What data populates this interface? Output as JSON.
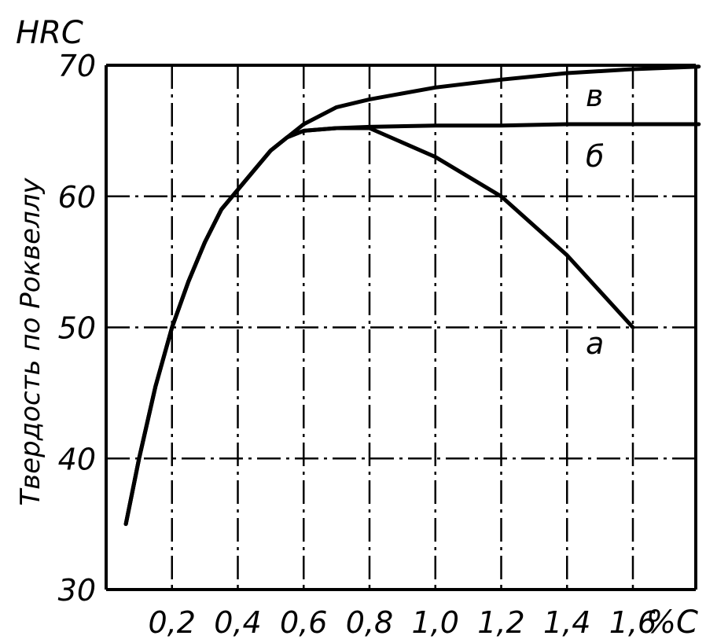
{
  "chart_data": {
    "type": "line",
    "ylabel": "Твердость по Роквеллу",
    "ylabel_units": "HRC",
    "xlabel_units": "%C",
    "xlim": [
      0,
      1.8
    ],
    "ylim": [
      30,
      70
    ],
    "x_ticks": [
      "0,2",
      "0,4",
      "0,6",
      "0,8",
      "1,0",
      "1,2",
      "1,4",
      "1,6"
    ],
    "x_tick_values": [
      0.2,
      0.4,
      0.6,
      0.8,
      1.0,
      1.2,
      1.4,
      1.6
    ],
    "y_ticks": [
      "30",
      "40",
      "50",
      "60",
      "70"
    ],
    "y_tick_values": [
      30,
      40,
      50,
      60,
      70
    ],
    "grid": true,
    "series": [
      {
        "name": "а",
        "x": [
          0.06,
          0.1,
          0.15,
          0.2,
          0.25,
          0.3,
          0.35,
          0.4,
          0.45,
          0.5,
          0.55,
          0.6,
          0.7,
          0.8,
          1.0,
          1.2,
          1.4,
          1.6
        ],
        "y": [
          35,
          40,
          45.5,
          50,
          53.5,
          56.5,
          59,
          60.5,
          62,
          63.5,
          64.5,
          65,
          65.2,
          65.2,
          63,
          60,
          55.5,
          50
        ]
      },
      {
        "name": "б",
        "x": [
          0.06,
          0.1,
          0.15,
          0.2,
          0.25,
          0.3,
          0.35,
          0.4,
          0.45,
          0.5,
          0.55,
          0.6,
          0.7,
          0.8,
          1.0,
          1.2,
          1.4,
          1.6,
          1.8
        ],
        "y": [
          35,
          40,
          45.5,
          50,
          53.5,
          56.5,
          59,
          60.5,
          62,
          63.5,
          64.5,
          65,
          65.2,
          65.3,
          65.4,
          65.4,
          65.5,
          65.5,
          65.5
        ]
      },
      {
        "name": "в",
        "x": [
          0.06,
          0.1,
          0.15,
          0.2,
          0.25,
          0.3,
          0.35,
          0.4,
          0.45,
          0.5,
          0.55,
          0.6,
          0.7,
          0.8,
          1.0,
          1.2,
          1.4,
          1.6,
          1.8
        ],
        "y": [
          35,
          40,
          45.5,
          50,
          53.5,
          56.5,
          59,
          60.5,
          62,
          63.5,
          64.5,
          65.5,
          66.8,
          67.4,
          68.3,
          68.9,
          69.4,
          69.7,
          69.9
        ]
      }
    ]
  }
}
